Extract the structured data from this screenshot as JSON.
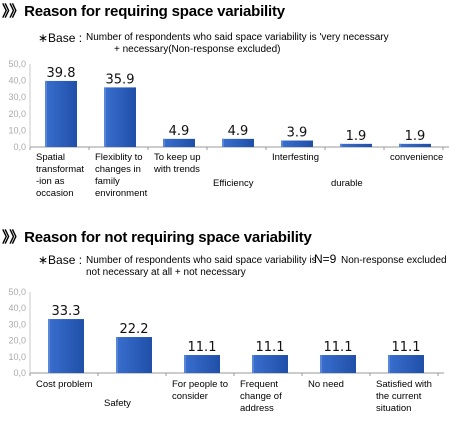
{
  "charts": [
    {
      "title": "》》Reason for requiring space variability",
      "base_label": "∗Base :",
      "base_line1": "Number of respondents who said space variability is 'very necessary",
      "base_line2": "+ necessary(Non-response excluded)",
      "n_label": ""
    },
    {
      "title": "》》Reason for not requiring space variability",
      "base_label": "∗Base :",
      "base_line1": "Number of respondents who said space variability is",
      "base_line2": "not necessary at all + not necessary",
      "n_label": "N=9",
      "n_note": "Non-response excluded"
    }
  ],
  "chart_data": [
    {
      "type": "bar",
      "title": "Reason for requiring space variability",
      "categories": [
        "Spatial transformat-ion as occasion",
        "Flexiblity to changes in family environment",
        "To keep up with trends",
        "Efficiency",
        "Interfesting",
        "durable",
        "convenience"
      ],
      "category_lines": [
        [
          "Spatial",
          "transformat",
          "-ion as",
          "occasion"
        ],
        [
          "Flexiblity to",
          "changes in",
          "family",
          "environment"
        ],
        [
          "To keep up",
          "with trends"
        ],
        [
          "Efficiency"
        ],
        [
          "Interfesting"
        ],
        [
          "durable"
        ],
        [
          "convenience"
        ]
      ],
      "values": [
        39.8,
        35.9,
        4.9,
        4.9,
        3.9,
        1.9,
        1.9
      ],
      "value_labels": [
        "39.8",
        "35.9",
        "4.9",
        "4.9",
        "3.9",
        "1.9",
        "1.9"
      ],
      "yticks": [
        "0,0",
        "10,0",
        "20,0",
        "30,0",
        "40,0",
        "50,0"
      ],
      "ylim": [
        0,
        50
      ],
      "grid": false,
      "bar_color": "#1f4fa8"
    },
    {
      "type": "bar",
      "title": "Reason for not requiring space variability",
      "categories": [
        "Cost problem",
        "Safety",
        "For people to consider",
        "Frequent change of address",
        "No need",
        "Satisfied with the current situation"
      ],
      "category_lines": [
        [
          "Cost problem"
        ],
        [
          "Safety"
        ],
        [
          "For people to",
          "consider"
        ],
        [
          "Frequent",
          "change of",
          "address"
        ],
        [
          "No need"
        ],
        [
          "Satisfied with",
          "the current",
          "situation"
        ]
      ],
      "values": [
        33.3,
        22.2,
        11.1,
        11.1,
        11.1,
        11.1
      ],
      "value_labels": [
        "33.3",
        "22.2",
        "11.1",
        "11.1",
        "11.1",
        "11.1"
      ],
      "yticks": [
        "0,0",
        "10,0",
        "20,0",
        "30,0",
        "40,0",
        "50,0"
      ],
      "ylim": [
        0,
        50
      ],
      "grid": false,
      "bar_color": "#1f4fa8"
    }
  ]
}
